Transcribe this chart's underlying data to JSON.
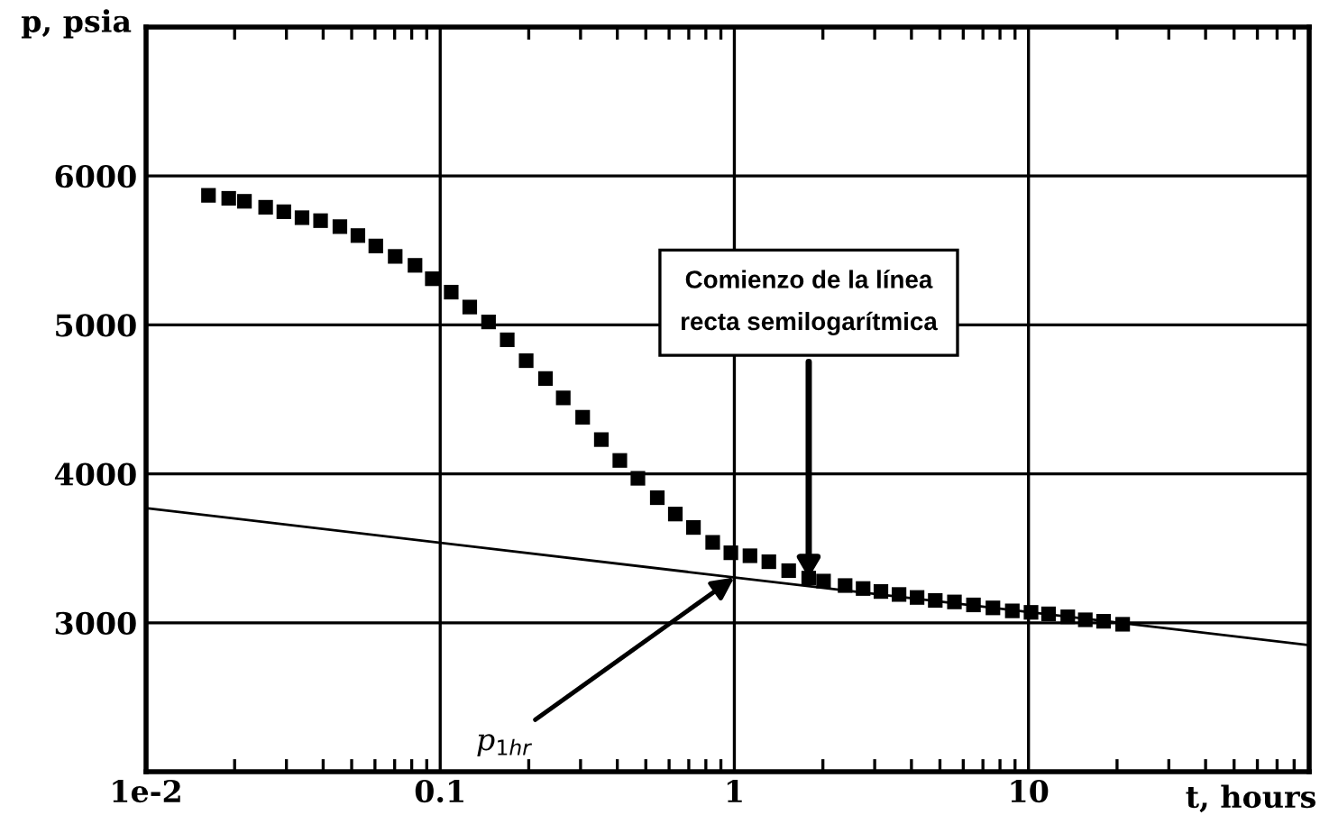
{
  "chart_data": {
    "type": "scatter",
    "xlabel": "t, hours",
    "ylabel": "p, psia",
    "log": "x",
    "grid": true,
    "marker": "square",
    "xlim": [
      0.01,
      90
    ],
    "ylim": [
      2000,
      7000
    ],
    "xticks": [
      {
        "value": 0.01,
        "label": "1e-2"
      },
      0.1,
      1,
      10
    ],
    "yticks": [
      3000,
      4000,
      5000,
      6000
    ],
    "series": [
      {
        "color": "#000000",
        "x": [
          0.0163,
          0.0191,
          0.0216,
          0.0255,
          0.0294,
          0.0339,
          0.0392,
          0.0456,
          0.0525,
          0.0604,
          0.0703,
          0.0821,
          0.094,
          0.109,
          0.126,
          0.146,
          0.169,
          0.196,
          0.228,
          0.262,
          0.305,
          0.353,
          0.408,
          0.47,
          0.547,
          0.63,
          0.726,
          0.844,
          0.973,
          1.13,
          1.31,
          1.53,
          1.79,
          2.01,
          2.38,
          2.74,
          3.15,
          3.63,
          4.18,
          4.82,
          5.6,
          6.5,
          7.57,
          8.81,
          10.2,
          11.7,
          13.6,
          15.6,
          18.0,
          20.9
        ],
        "values": [
          5870,
          5850,
          5830,
          5790,
          5760,
          5720,
          5700,
          5660,
          5600,
          5530,
          5460,
          5400,
          5310,
          5220,
          5120,
          5020,
          4900,
          4760,
          4640,
          4510,
          4380,
          4230,
          4090,
          3970,
          3840,
          3730,
          3640,
          3540,
          3470,
          3450,
          3410,
          3350,
          3300,
          3280,
          3250,
          3230,
          3210,
          3190,
          3170,
          3150,
          3140,
          3120,
          3100,
          3080,
          3070,
          3060,
          3040,
          3020,
          3010,
          2990
        ]
      },
      {
        "type": "line",
        "color": "#000000",
        "marker": "none",
        "line_style": "solid",
        "x": [
          0.01,
          90
        ],
        "values": [
          3770,
          2850
        ]
      }
    ],
    "annotations": [
      {
        "text": "Comienzo de la línea\nrecta semilogarítmica",
        "x": 1.79,
        "y": 3300
      },
      {
        "text": "p$_{1hr}$",
        "x": 1,
        "y": 3305
      }
    ]
  }
}
